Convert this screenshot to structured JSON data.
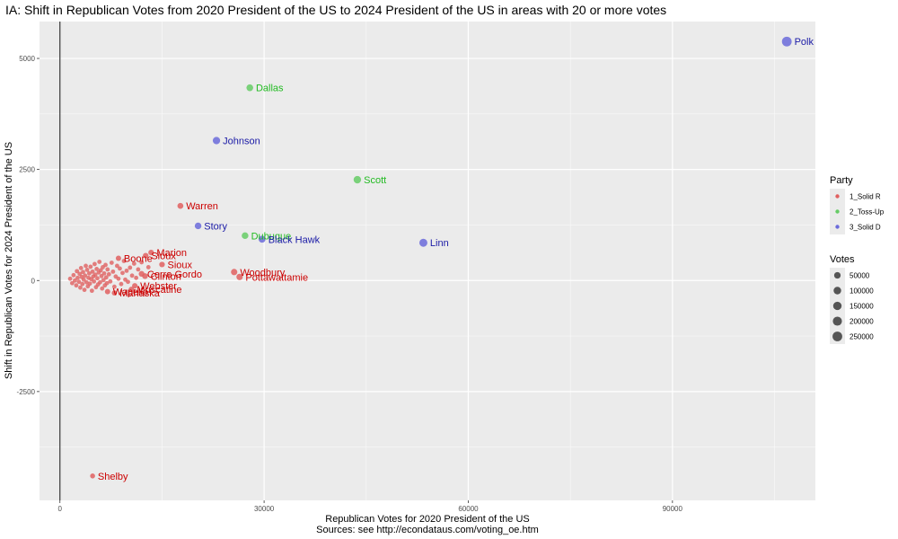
{
  "chart_data": {
    "type": "scatter",
    "title": "IA: Shift in Republican Votes from 2020 President of the US to 2024 President of the US in areas with 20 or more votes",
    "xlabel": "Republican Votes for 2020 President of the US",
    "ylabel": "Shift in Republican Votes for 2024 President of the US",
    "caption": "Sources: see http://econdataus.com/voting_oe.htm",
    "xlim": [
      -3000,
      111000
    ],
    "ylim": [
      -4950,
      5830
    ],
    "x_ticks": [
      0,
      30000,
      60000,
      90000
    ],
    "x_tick_labels": [
      "0",
      "30000",
      "60000",
      "90000"
    ],
    "y_ticks": [
      -2500,
      0,
      2500,
      5000
    ],
    "y_tick_labels": [
      "-2500",
      "0",
      "2500",
      "5000"
    ],
    "grid": true,
    "colors": {
      "panel_bg": "#ebebeb",
      "grid_major": "#ffffff",
      "zero_line": "#333333",
      "legend_key_bg": "#ebebeb",
      "solid_r_point": "#e06060",
      "toss_up_point": "#66cc66",
      "solid_d_point": "#6b6bdb",
      "solid_r_text": "#cc0000",
      "toss_up_text": "#22bb22",
      "solid_d_text": "#1a1aa6",
      "size_key_point": "#555555"
    },
    "legend_party": {
      "title": "Party",
      "entries": [
        {
          "label": "1_Solid R",
          "party": "R"
        },
        {
          "label": "2_Toss-Up",
          "party": "T"
        },
        {
          "label": "3_Solid D",
          "party": "D"
        }
      ]
    },
    "legend_votes": {
      "title": "Votes",
      "entries": [
        {
          "label": "50000",
          "value": 50000
        },
        {
          "label": "100000",
          "value": 100000
        },
        {
          "label": "150000",
          "value": 150000
        },
        {
          "label": "200000",
          "value": 200000
        },
        {
          "label": "250000",
          "value": 250000
        }
      ]
    },
    "labeled_points": [
      {
        "label": "Polk",
        "x": 106800,
        "y": 5380,
        "party": "D",
        "votes": 250000
      },
      {
        "label": "Dallas",
        "x": 27900,
        "y": 4340,
        "party": "T",
        "votes": 60000
      },
      {
        "label": "Johnson",
        "x": 23000,
        "y": 3150,
        "party": "D",
        "votes": 90000
      },
      {
        "label": "Scott",
        "x": 43700,
        "y": 2270,
        "party": "T",
        "votes": 95000
      },
      {
        "label": "Warren",
        "x": 17700,
        "y": 1680,
        "party": "R",
        "votes": 30000
      },
      {
        "label": "Story",
        "x": 20300,
        "y": 1230,
        "party": "D",
        "votes": 55000
      },
      {
        "label": "Dubuque",
        "x": 27200,
        "y": 1010,
        "party": "T",
        "votes": 55000
      },
      {
        "label": "Black Hawk",
        "x": 29700,
        "y": 930,
        "party": "D",
        "votes": 70000
      },
      {
        "label": "Linn",
        "x": 53400,
        "y": 850,
        "party": "D",
        "votes": 125000
      },
      {
        "label": "Marion",
        "x": 13400,
        "y": 630,
        "party": "R",
        "votes": 20000
      },
      {
        "label": "Sioux",
        "x": 12600,
        "y": 560,
        "party": "R",
        "votes": 20000
      },
      {
        "label": "Boone",
        "x": 8600,
        "y": 500,
        "party": "R",
        "votes": 15000
      },
      {
        "label": "Sioux",
        "x": 15000,
        "y": 360,
        "party": "R",
        "votes": 20000
      },
      {
        "label": "Woodbury",
        "x": 25600,
        "y": 190,
        "party": "R",
        "votes": 45000
      },
      {
        "label": "Pottawattamie",
        "x": 26400,
        "y": 80,
        "party": "R",
        "votes": 45000
      },
      {
        "label": "Cerro Gordo",
        "x": 12000,
        "y": 150,
        "party": "R",
        "votes": 25000
      },
      {
        "label": "Clinton",
        "x": 12500,
        "y": 100,
        "party": "R",
        "votes": 25000
      },
      {
        "label": "Webster",
        "x": 11000,
        "y": -120,
        "party": "R",
        "votes": 18000
      },
      {
        "label": "Muscatine",
        "x": 10500,
        "y": -200,
        "party": "R",
        "votes": 18000
      },
      {
        "label": "Wapello",
        "x": 7000,
        "y": -250,
        "party": "R",
        "votes": 14000
      },
      {
        "label": "Mahaska",
        "x": 8000,
        "y": -280,
        "party": "R",
        "votes": 12000
      },
      {
        "label": "Shelby",
        "x": 4800,
        "y": -4400,
        "party": "R",
        "votes": 8000
      }
    ],
    "cluster_points": [
      {
        "x": 1500,
        "y": 40
      },
      {
        "x": 1800,
        "y": -60
      },
      {
        "x": 2000,
        "y": 120
      },
      {
        "x": 2200,
        "y": 0
      },
      {
        "x": 2400,
        "y": -110
      },
      {
        "x": 2500,
        "y": 210
      },
      {
        "x": 2600,
        "y": 60
      },
      {
        "x": 2800,
        "y": -30
      },
      {
        "x": 2900,
        "y": 150
      },
      {
        "x": 3000,
        "y": -160
      },
      {
        "x": 3100,
        "y": 280
      },
      {
        "x": 3200,
        "y": 80
      },
      {
        "x": 3300,
        "y": -80
      },
      {
        "x": 3400,
        "y": 190
      },
      {
        "x": 3500,
        "y": 20
      },
      {
        "x": 3600,
        "y": -210
      },
      {
        "x": 3700,
        "y": 110
      },
      {
        "x": 3800,
        "y": 330
      },
      {
        "x": 3900,
        "y": -40
      },
      {
        "x": 4000,
        "y": 240
      },
      {
        "x": 4100,
        "y": -130
      },
      {
        "x": 4200,
        "y": 60
      },
      {
        "x": 4300,
        "y": 160
      },
      {
        "x": 4400,
        "y": -70
      },
      {
        "x": 4500,
        "y": 310
      },
      {
        "x": 4600,
        "y": 30
      },
      {
        "x": 4700,
        "y": -230
      },
      {
        "x": 4800,
        "y": 200
      },
      {
        "x": 4900,
        "y": 90
      },
      {
        "x": 5000,
        "y": -20
      },
      {
        "x": 5100,
        "y": 370
      },
      {
        "x": 5200,
        "y": 130
      },
      {
        "x": 5300,
        "y": -150
      },
      {
        "x": 5400,
        "y": 260
      },
      {
        "x": 5500,
        "y": 50
      },
      {
        "x": 5600,
        "y": -90
      },
      {
        "x": 5700,
        "y": 180
      },
      {
        "x": 5800,
        "y": 420
      },
      {
        "x": 5900,
        "y": -40
      },
      {
        "x": 6000,
        "y": 230
      },
      {
        "x": 6100,
        "y": 100
      },
      {
        "x": 6200,
        "y": -180
      },
      {
        "x": 6300,
        "y": 300
      },
      {
        "x": 6400,
        "y": 10
      },
      {
        "x": 6500,
        "y": 160
      },
      {
        "x": 6600,
        "y": -110
      },
      {
        "x": 6700,
        "y": 350
      },
      {
        "x": 6800,
        "y": 70
      },
      {
        "x": 6900,
        "y": -60
      },
      {
        "x": 7000,
        "y": 250
      },
      {
        "x": 7200,
        "y": 140
      },
      {
        "x": 7400,
        "y": -20
      },
      {
        "x": 7600,
        "y": 400
      },
      {
        "x": 7800,
        "y": 200
      },
      {
        "x": 8000,
        "y": -140
      },
      {
        "x": 8200,
        "y": 90
      },
      {
        "x": 8400,
        "y": 330
      },
      {
        "x": 8600,
        "y": 40
      },
      {
        "x": 8800,
        "y": 270
      },
      {
        "x": 9000,
        "y": -80
      },
      {
        "x": 9200,
        "y": 170
      },
      {
        "x": 9400,
        "y": 440
      },
      {
        "x": 9600,
        "y": 20
      },
      {
        "x": 9800,
        "y": 220
      },
      {
        "x": 10000,
        "y": -30
      },
      {
        "x": 10300,
        "y": 290
      },
      {
        "x": 10600,
        "y": 110
      },
      {
        "x": 10900,
        "y": 380
      },
      {
        "x": 11200,
        "y": 60
      },
      {
        "x": 11500,
        "y": 250
      },
      {
        "x": 12000,
        "y": 410
      },
      {
        "x": 13000,
        "y": 300
      }
    ]
  }
}
